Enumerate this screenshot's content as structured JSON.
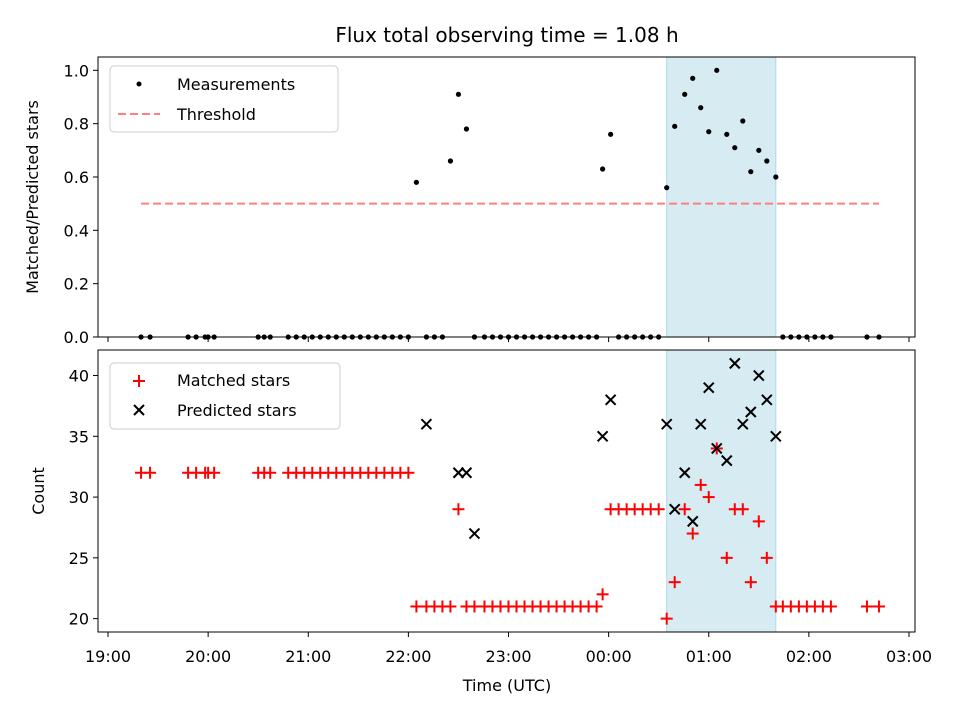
{
  "chart_data": {
    "type": "scatter",
    "title": "Flux total observing time = 1.08 h",
    "xlabel": "Time (UTC)",
    "x_unit": "hours since 19:00 UTC",
    "xlim": [
      -0.1,
      8.06
    ],
    "xticks": [
      0,
      1,
      2,
      3,
      4,
      5,
      6,
      7,
      8
    ],
    "xtick_labels": [
      "19:00",
      "20:00",
      "21:00",
      "22:00",
      "23:00",
      "00:00",
      "01:00",
      "02:00",
      "03:00"
    ],
    "highlight_span": [
      5.58,
      6.67
    ],
    "highlight_color": "#add8e6",
    "top": {
      "ylabel": "Matched/Predicted stars",
      "ylim": [
        0,
        1.05
      ],
      "yticks": [
        0.0,
        0.2,
        0.4,
        0.6,
        0.8,
        1.0
      ],
      "ytick_labels": [
        "0.0",
        "0.2",
        "0.4",
        "0.6",
        "0.8",
        "1.0"
      ],
      "legend": [
        {
          "label": "Measurements",
          "color": "#000000",
          "marker": "dot"
        },
        {
          "label": "Threshold",
          "color": "#ff7f7f",
          "marker": "dashed-line"
        }
      ],
      "threshold": {
        "value": 0.5,
        "x_start": 0.33,
        "x_end": 7.7
      },
      "measurements": {
        "x": [
          0.33,
          0.42,
          0.8,
          0.88,
          0.97,
          1.0,
          1.06,
          1.5,
          1.56,
          1.62,
          1.8,
          1.88,
          1.96,
          2.04,
          2.12,
          2.2,
          2.28,
          2.36,
          2.44,
          2.52,
          2.6,
          2.68,
          2.76,
          2.84,
          2.92,
          3.0,
          3.08,
          3.18,
          3.26,
          3.34,
          3.42,
          3.5,
          3.58,
          3.66,
          3.76,
          3.84,
          3.92,
          4.0,
          4.08,
          4.16,
          4.24,
          4.32,
          4.4,
          4.48,
          4.56,
          4.64,
          4.72,
          4.8,
          4.88,
          4.94,
          5.02,
          5.1,
          5.18,
          5.26,
          5.34,
          5.42,
          5.5,
          5.58,
          5.66,
          5.76,
          5.84,
          5.92,
          6.0,
          6.08,
          6.18,
          6.26,
          6.34,
          6.42,
          6.5,
          6.58,
          6.67,
          6.74,
          6.82,
          6.9,
          6.98,
          7.06,
          7.14,
          7.22,
          7.58,
          7.7
        ],
        "y": [
          0,
          0,
          0,
          0,
          0,
          0,
          0,
          0,
          0,
          0,
          0,
          0,
          0,
          0,
          0,
          0,
          0,
          0,
          0,
          0,
          0,
          0,
          0,
          0,
          0,
          0,
          0.58,
          0,
          0,
          0,
          0.66,
          0.91,
          0.78,
          0,
          0,
          0,
          0,
          0,
          0,
          0,
          0,
          0,
          0,
          0,
          0,
          0,
          0,
          0,
          0,
          0.63,
          0.76,
          0,
          0,
          0,
          0,
          0,
          0,
          0.56,
          0.79,
          0.91,
          0.97,
          0.86,
          0.77,
          1.0,
          0.76,
          0.71,
          0.81,
          0.62,
          0.7,
          0.66,
          0.6,
          0,
          0,
          0,
          0,
          0,
          0,
          0,
          0,
          0
        ]
      }
    },
    "bottom": {
      "ylabel": "Count",
      "ylim": [
        18.9,
        42.1
      ],
      "yticks": [
        20,
        25,
        30,
        35,
        40
      ],
      "ytick_labels": [
        "20",
        "25",
        "30",
        "35",
        "40"
      ],
      "legend": [
        {
          "label": "Matched stars",
          "color": "#ff0000",
          "marker": "plus"
        },
        {
          "label": "Predicted stars",
          "color": "#000000",
          "marker": "x"
        }
      ],
      "matched": {
        "x": [
          0.33,
          0.42,
          0.8,
          0.88,
          0.97,
          1.0,
          1.06,
          1.5,
          1.56,
          1.62,
          1.8,
          1.88,
          1.96,
          2.04,
          2.12,
          2.2,
          2.28,
          2.36,
          2.44,
          2.52,
          2.6,
          2.68,
          2.76,
          2.84,
          2.92,
          3.0,
          3.08,
          3.18,
          3.26,
          3.34,
          3.42,
          3.5,
          3.58,
          3.66,
          3.76,
          3.84,
          3.92,
          4.0,
          4.08,
          4.16,
          4.24,
          4.32,
          4.4,
          4.48,
          4.56,
          4.64,
          4.72,
          4.8,
          4.88,
          4.94,
          5.02,
          5.1,
          5.18,
          5.26,
          5.34,
          5.42,
          5.5,
          5.58,
          5.66,
          5.76,
          5.84,
          5.92,
          6.0,
          6.08,
          6.18,
          6.26,
          6.34,
          6.42,
          6.5,
          6.58,
          6.67,
          6.74,
          6.82,
          6.9,
          6.98,
          7.06,
          7.14,
          7.22,
          7.58,
          7.7
        ],
        "y": [
          32,
          32,
          32,
          32,
          32,
          32,
          32,
          32,
          32,
          32,
          32,
          32,
          32,
          32,
          32,
          32,
          32,
          32,
          32,
          32,
          32,
          32,
          32,
          32,
          32,
          32,
          21,
          21,
          21,
          21,
          21,
          29,
          21,
          21,
          21,
          21,
          21,
          21,
          21,
          21,
          21,
          21,
          21,
          21,
          21,
          21,
          21,
          21,
          21,
          22,
          29,
          29,
          29,
          29,
          29,
          29,
          29,
          20,
          23,
          29,
          27,
          31,
          30,
          34,
          25,
          29,
          29,
          23,
          28,
          25,
          21,
          21,
          21,
          21,
          21,
          21,
          21,
          21,
          21,
          21
        ]
      },
      "predicted": {
        "x": [
          3.18,
          3.5,
          3.58,
          3.66,
          4.94,
          5.02,
          5.58,
          5.66,
          5.76,
          5.84,
          5.92,
          6.0,
          6.08,
          6.18,
          6.26,
          6.34,
          6.42,
          6.5,
          6.58,
          6.67
        ],
        "y": [
          36,
          32,
          32,
          27,
          35,
          38,
          36,
          29,
          32,
          28,
          36,
          39,
          34,
          33,
          41,
          36,
          37,
          40,
          38,
          35
        ]
      }
    }
  }
}
